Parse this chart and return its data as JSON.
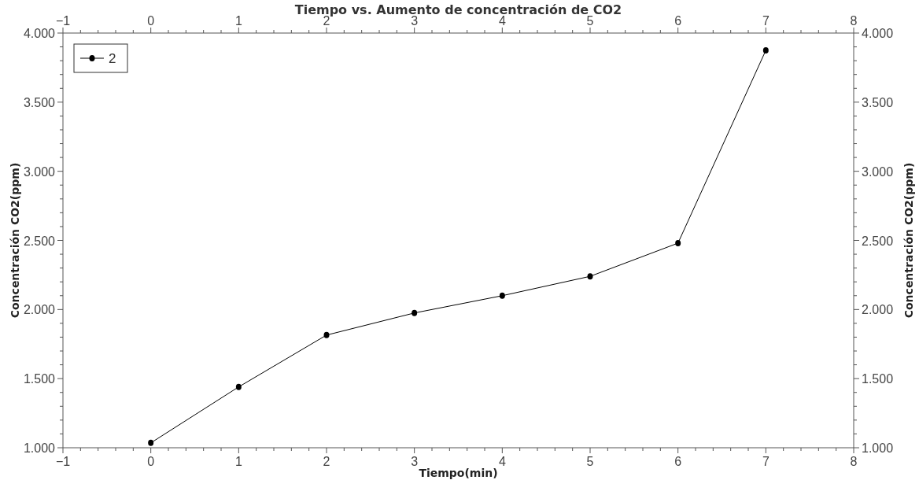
{
  "chart_data": {
    "type": "line",
    "title": "Tiempo vs. Aumento de concentración de CO2",
    "xlabel": "Tiempo(min)",
    "ylabel": "Concentración CO2(ppm)",
    "y2label": "Concentración CO2(ppm)",
    "x": [
      0,
      1,
      2,
      3,
      4,
      5,
      6,
      7
    ],
    "series": [
      {
        "name": "2",
        "color": "#000000",
        "values": [
          1035,
          1440,
          1815,
          1975,
          2100,
          2240,
          2480,
          3875
        ]
      }
    ],
    "xlim": [
      -1,
      8
    ],
    "xticks": [
      {
        "value": -1,
        "label": "−1"
      },
      0,
      1,
      2,
      3,
      4,
      5,
      6,
      7,
      8
    ],
    "x2lim": [
      -1,
      8
    ],
    "x2ticks": [
      {
        "value": -1,
        "label": "−1"
      },
      0,
      1,
      2,
      3,
      4,
      5,
      6,
      7,
      8
    ],
    "ylim": [
      1000,
      4000
    ],
    "yticks": [
      {
        "value": 1000,
        "label": "1.000"
      },
      {
        "value": 1500,
        "label": "1.500"
      },
      {
        "value": 2000,
        "label": "2.000"
      },
      {
        "value": 2500,
        "label": "2.500"
      },
      {
        "value": 3000,
        "label": "3.000"
      },
      {
        "value": 3500,
        "label": "3.500"
      },
      {
        "value": 4000,
        "label": "4.000"
      }
    ],
    "y2lim": [
      1000,
      4000
    ],
    "y2ticks": [
      {
        "value": 1000,
        "label": "1.000"
      },
      {
        "value": 1500,
        "label": "1.500"
      },
      {
        "value": 2000,
        "label": "2.000"
      },
      {
        "value": 2500,
        "label": "2.500"
      },
      {
        "value": 3000,
        "label": "3.000"
      },
      {
        "value": 3500,
        "label": "3.500"
      },
      {
        "value": 4000,
        "label": "4.000"
      }
    ],
    "legend": "top left",
    "marker": "circle",
    "line_style": "solid",
    "grid": false
  }
}
